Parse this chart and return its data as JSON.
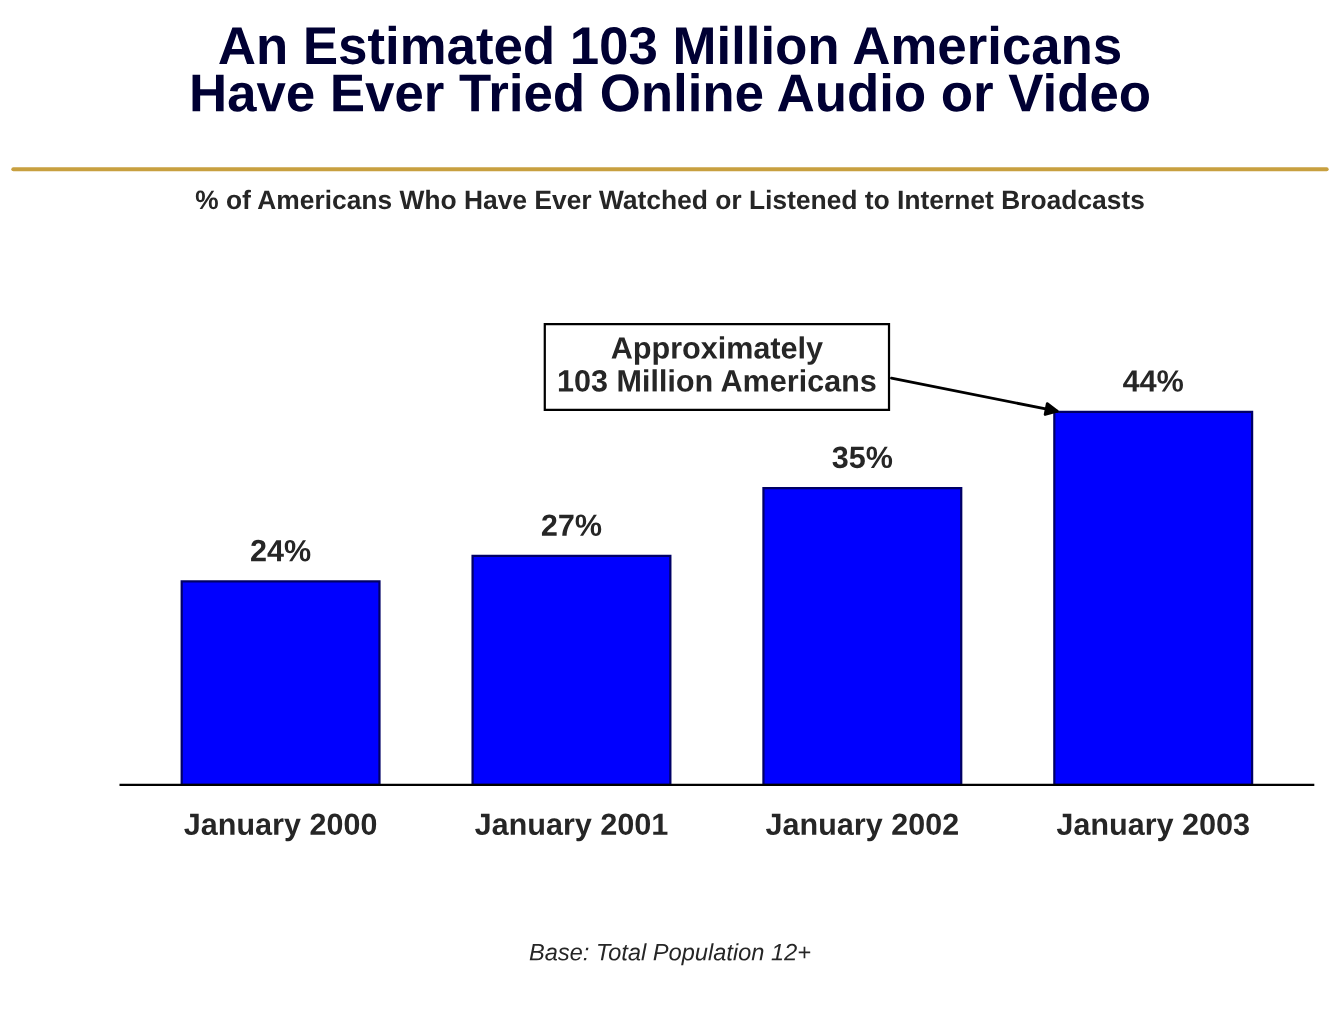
{
  "chart_data": {
    "type": "bar",
    "title": "An Estimated 103 Million Americans\nHave Ever Tried Online Audio or Video",
    "subtitle": "% of Americans Who Have Ever Watched or Listened to Internet Broadcasts",
    "categories": [
      "January 2000",
      "January 2001",
      "January 2002",
      "January 2003"
    ],
    "values": [
      24,
      27,
      35,
      44
    ],
    "value_labels": [
      "24%",
      "27%",
      "35%",
      "44%"
    ],
    "color": "#0000ff",
    "annotations": [
      "Approximately\n103 Million Americans",
      "Base: Total Population 12+"
    ],
    "grid": false
  }
}
